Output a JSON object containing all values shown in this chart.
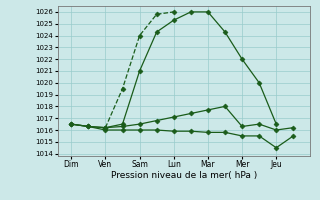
{
  "xlabel": "Pression niveau de la mer( hPa )",
  "background_color": "#cce8e8",
  "grid_color": "#99cccc",
  "line_color": "#1a5c1a",
  "x_labels": [
    "Dim",
    "Ven",
    "Sam",
    "Lun",
    "Mar",
    "Mer",
    "Jeu"
  ],
  "series_A": {
    "x": [
      1,
      1.5,
      2,
      2.5,
      3
    ],
    "y": [
      1016.2,
      1019.5,
      1024.0,
      1025.8,
      1026.0
    ]
  },
  "series_B": {
    "x": [
      0,
      0.5,
      1,
      1.5,
      2,
      2.5,
      3,
      3.5,
      4,
      4.5,
      5,
      5.5,
      6
    ],
    "y": [
      1016.5,
      1016.3,
      1016.2,
      1016.5,
      1021.0,
      1024.3,
      1025.3,
      1026.0,
      1026.0,
      1024.3,
      1022.0,
      1020.0,
      1016.5
    ]
  },
  "series_C": {
    "x": [
      0,
      0.5,
      1,
      1.5,
      2,
      2.5,
      3,
      3.5,
      4,
      4.5,
      5,
      5.5,
      6,
      6.5
    ],
    "y": [
      1016.5,
      1016.3,
      1016.0,
      1016.0,
      1016.0,
      1016.0,
      1015.9,
      1015.9,
      1015.8,
      1015.8,
      1015.5,
      1015.5,
      1014.5,
      1015.5
    ]
  },
  "series_D": {
    "x": [
      0,
      0.5,
      1,
      1.5,
      2,
      2.5,
      3,
      3.5,
      4,
      4.5,
      5,
      5.5,
      6,
      6.5
    ],
    "y": [
      1016.5,
      1016.3,
      1016.2,
      1016.3,
      1016.5,
      1016.8,
      1017.1,
      1017.4,
      1017.7,
      1018.0,
      1016.3,
      1016.5,
      1016.0,
      1016.2
    ]
  }
}
